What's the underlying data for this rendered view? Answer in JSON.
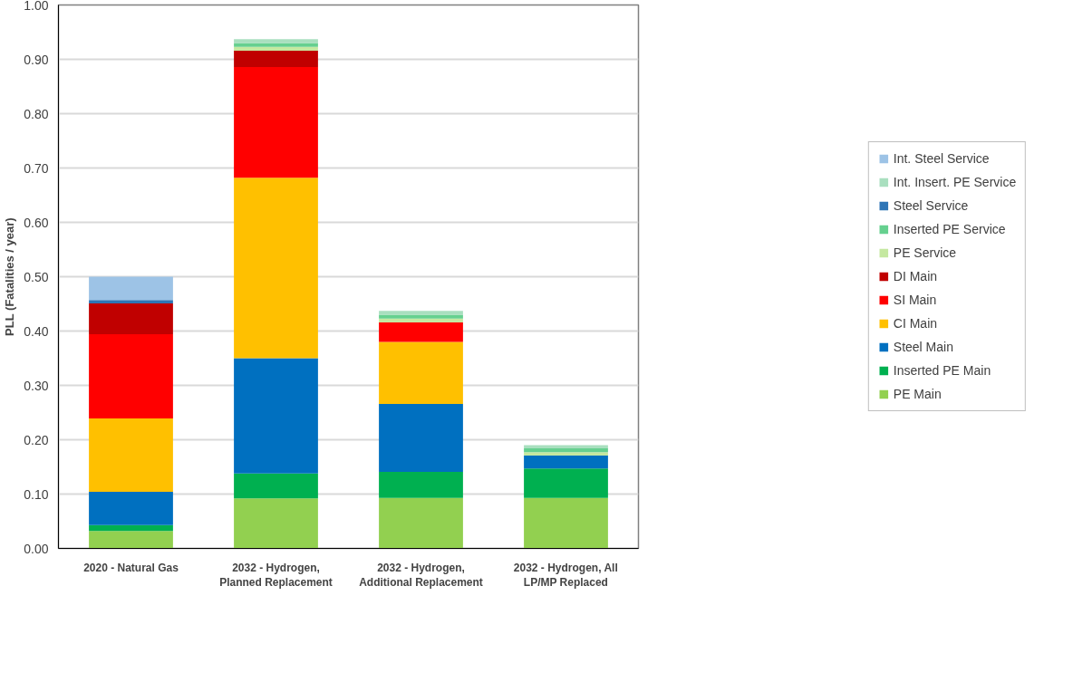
{
  "chart_data": {
    "type": "bar",
    "stacked": true,
    "ylabel": "PLL (Fatalities / year)",
    "categories": [
      "2020 - Natural Gas",
      "2032 - Hydrogen,\nPlanned Replacement",
      "2032 - Hydrogen,\nAdditional Replacement",
      "2032 - Hydrogen, All\nLP/MP Replaced"
    ],
    "series": [
      {
        "name": "PE Main",
        "color": "#92d050",
        "values": [
          0.032,
          0.092,
          0.093,
          0.093
        ]
      },
      {
        "name": "Inserted PE Main",
        "color": "#00b050",
        "values": [
          0.011,
          0.046,
          0.048,
          0.054
        ]
      },
      {
        "name": "Steel Main",
        "color": "#0070c0",
        "values": [
          0.061,
          0.212,
          0.125,
          0.024
        ]
      },
      {
        "name": "CI Main",
        "color": "#ffc000",
        "values": [
          0.135,
          0.332,
          0.114,
          null
        ]
      },
      {
        "name": "SI Main",
        "color": "#ff0000",
        "values": [
          0.155,
          0.204,
          0.036,
          null
        ]
      },
      {
        "name": "DI Main",
        "color": "#c00000",
        "values": [
          0.057,
          0.03,
          null,
          null
        ]
      },
      {
        "name": "PE Service",
        "color": "#c5e8a0",
        "values": [
          null,
          0.007,
          0.007,
          0.006
        ]
      },
      {
        "name": "Inserted PE Service",
        "color": "#66d08f",
        "values": [
          null,
          0.007,
          0.007,
          0.007
        ]
      },
      {
        "name": "Steel Service",
        "color": "#2e75b6",
        "values": [
          0.006,
          null,
          null,
          null
        ]
      },
      {
        "name": "Int. Insert. PE Service",
        "color": "#a9dfbf",
        "values": [
          null,
          0.007,
          0.007,
          0.006
        ]
      },
      {
        "name": "Int. Steel Service",
        "color": "#9dc3e6",
        "values": [
          0.043,
          null,
          null,
          null
        ]
      }
    ],
    "ylim": [
      0,
      1.0
    ],
    "yticks": [
      {
        "value": 0,
        "label": "0.00"
      },
      {
        "value": 0.1,
        "label": "0.10"
      },
      {
        "value": 0.2,
        "label": "0.20"
      },
      {
        "value": 0.3,
        "label": "0.30"
      },
      {
        "value": 0.4,
        "label": "0.40"
      },
      {
        "value": 0.5,
        "label": "0.50"
      },
      {
        "value": 0.6,
        "label": "0.60"
      },
      {
        "value": 0.7,
        "label": "0.70"
      },
      {
        "value": 0.8,
        "label": "0.80"
      },
      {
        "value": 0.9,
        "label": "0.90"
      },
      {
        "value": 1.0,
        "label": "1.00"
      }
    ],
    "grid": "y",
    "legend": "right"
  }
}
